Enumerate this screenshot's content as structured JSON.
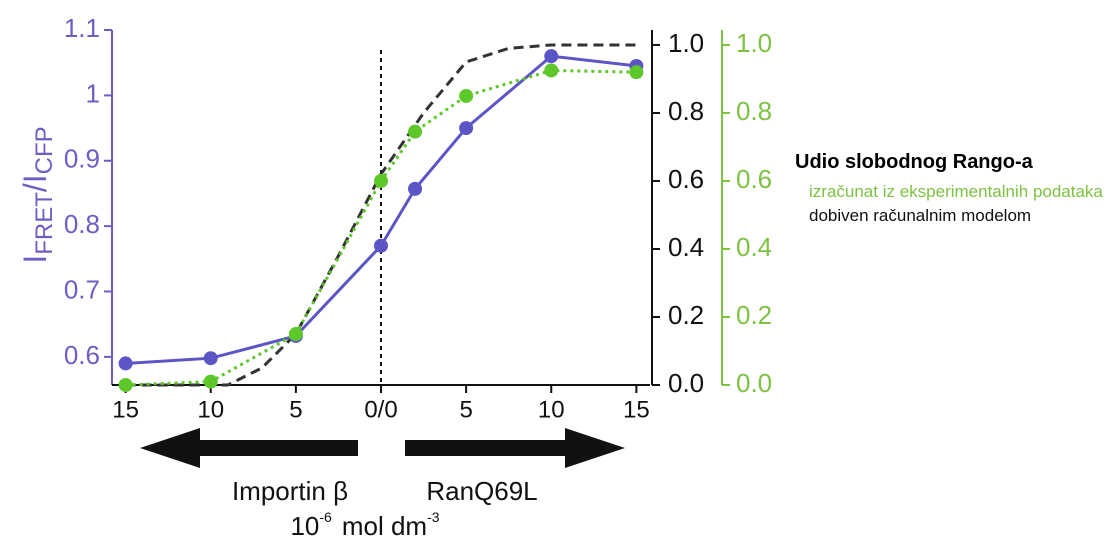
{
  "chart_data": {
    "type": "line",
    "ylabel": [
      "I",
      "FRET",
      "/I",
      "CFP"
    ],
    "xlim": [
      -15.8,
      15.8
    ],
    "xticks": [
      {
        "value": -15,
        "label": "15"
      },
      {
        "value": -10,
        "label": "10"
      },
      {
        "value": -5,
        "label": "5"
      },
      {
        "value": 0,
        "label": "0/0"
      },
      5,
      10,
      15
    ],
    "ylim": [
      0.557,
      1.1
    ],
    "yticks": [
      0.6,
      0.7,
      0.8,
      0.9,
      1.0,
      1.1
    ],
    "y2lim": [
      0,
      1.044
    ],
    "y2ticks": [
      {
        "value": 0,
        "label": "0.0"
      },
      0.2,
      0.4,
      0.6,
      0.8,
      {
        "value": 1,
        "label": "1.0"
      }
    ],
    "legend_title": "Udio slobodnog Rango-a",
    "series": [
      {
        "color": "#5b55c6",
        "style": "solid",
        "markers": true,
        "x": [
          -15,
          -10,
          -5,
          0,
          2,
          5,
          10,
          15
        ],
        "values": [
          0.59,
          0.598,
          0.632,
          0.77,
          0.857,
          0.95,
          1.06,
          1.045
        ]
      },
      {
        "name": "izračunat iz eksperimentalnih podataka",
        "color": "#5ec82a",
        "style": "dotted",
        "markers": true,
        "axis": "y2",
        "x": [
          -15,
          -10,
          -5,
          0,
          2,
          5,
          10,
          15
        ],
        "values": [
          0.0,
          0.01,
          0.15,
          0.6,
          0.745,
          0.85,
          0.925,
          0.92
        ]
      },
      {
        "name": "dobiven računalnim modelom",
        "color": "#333333",
        "style": "dashed",
        "markers": false,
        "axis": "y2",
        "x": [
          -15,
          -9,
          -7,
          -5,
          -2.5,
          0,
          2.5,
          5,
          7.5,
          10,
          15
        ],
        "values": [
          0,
          0,
          0.05,
          0.15,
          0.38,
          0.62,
          0.8,
          0.95,
          0.99,
          1.0,
          1.0
        ]
      }
    ],
    "left_annotation": "Importin β",
    "right_annotation": "RanQ69L",
    "unit": [
      "10",
      "-6",
      "mol dm",
      "-3"
    ]
  }
}
